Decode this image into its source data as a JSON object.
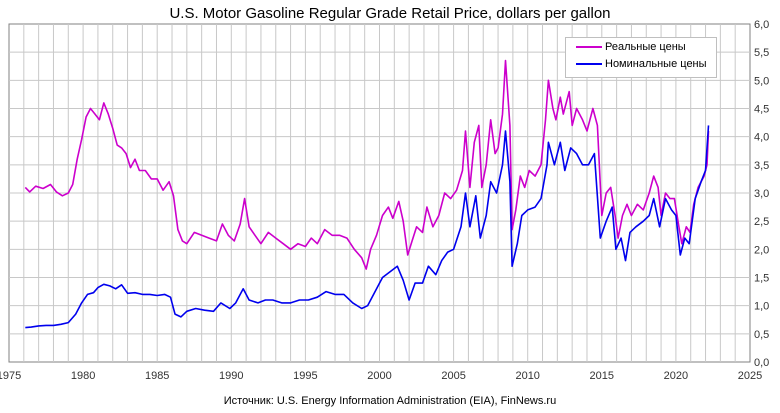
{
  "chart_data": {
    "type": "line",
    "title": "U.S. Motor Gasoline Regular Grade Retail Price, dollars per gallon",
    "source": "Источник: U.S. Energy Information Administration (EIA), FinNews.ru",
    "xlim": [
      1975,
      2025
    ],
    "ylim": [
      0,
      6
    ],
    "x_ticks": [
      "1975",
      "1980",
      "1985",
      "1990",
      "1995",
      "2000",
      "2005",
      "2010",
      "2015",
      "2020",
      "2025"
    ],
    "y_ticks": [
      "0,0",
      "0,5",
      "1,0",
      "1,5",
      "2,0",
      "2,5",
      "3,0",
      "3,5",
      "4,0",
      "4,5",
      "5,0",
      "5,5",
      "6,0"
    ],
    "grid": true,
    "legend_position": "top-right",
    "series": [
      {
        "name": "Реальные цены",
        "color": "#cc00cc",
        "points": [
          [
            1976.1,
            3.1
          ],
          [
            1976.4,
            3.02
          ],
          [
            1976.8,
            3.12
          ],
          [
            1977.3,
            3.08
          ],
          [
            1977.8,
            3.15
          ],
          [
            1978.2,
            3.02
          ],
          [
            1978.6,
            2.95
          ],
          [
            1979.0,
            3.0
          ],
          [
            1979.3,
            3.15
          ],
          [
            1979.6,
            3.6
          ],
          [
            1979.9,
            3.95
          ],
          [
            1980.2,
            4.35
          ],
          [
            1980.5,
            4.5
          ],
          [
            1980.8,
            4.4
          ],
          [
            1981.1,
            4.3
          ],
          [
            1981.4,
            4.6
          ],
          [
            1981.7,
            4.4
          ],
          [
            1982.0,
            4.15
          ],
          [
            1982.3,
            3.85
          ],
          [
            1982.6,
            3.8
          ],
          [
            1982.9,
            3.7
          ],
          [
            1983.2,
            3.45
          ],
          [
            1983.5,
            3.6
          ],
          [
            1983.8,
            3.4
          ],
          [
            1984.2,
            3.4
          ],
          [
            1984.6,
            3.25
          ],
          [
            1985.0,
            3.25
          ],
          [
            1985.4,
            3.05
          ],
          [
            1985.8,
            3.2
          ],
          [
            1986.1,
            2.95
          ],
          [
            1986.4,
            2.35
          ],
          [
            1986.7,
            2.15
          ],
          [
            1987.0,
            2.1
          ],
          [
            1987.5,
            2.3
          ],
          [
            1988.0,
            2.25
          ],
          [
            1988.5,
            2.2
          ],
          [
            1989.0,
            2.15
          ],
          [
            1989.4,
            2.45
          ],
          [
            1989.8,
            2.25
          ],
          [
            1990.2,
            2.15
          ],
          [
            1990.6,
            2.45
          ],
          [
            1990.9,
            2.9
          ],
          [
            1991.2,
            2.4
          ],
          [
            1991.6,
            2.25
          ],
          [
            1992.0,
            2.1
          ],
          [
            1992.5,
            2.3
          ],
          [
            1993.0,
            2.2
          ],
          [
            1993.5,
            2.1
          ],
          [
            1994.0,
            2.0
          ],
          [
            1994.5,
            2.1
          ],
          [
            1995.0,
            2.05
          ],
          [
            1995.4,
            2.2
          ],
          [
            1995.8,
            2.1
          ],
          [
            1996.3,
            2.35
          ],
          [
            1996.8,
            2.25
          ],
          [
            1997.3,
            2.25
          ],
          [
            1997.8,
            2.2
          ],
          [
            1998.3,
            2.0
          ],
          [
            1998.8,
            1.85
          ],
          [
            1999.1,
            1.65
          ],
          [
            1999.4,
            2.0
          ],
          [
            1999.8,
            2.25
          ],
          [
            2000.2,
            2.6
          ],
          [
            2000.6,
            2.75
          ],
          [
            2000.9,
            2.55
          ],
          [
            2001.3,
            2.85
          ],
          [
            2001.6,
            2.5
          ],
          [
            2001.9,
            1.9
          ],
          [
            2002.2,
            2.15
          ],
          [
            2002.5,
            2.4
          ],
          [
            2002.9,
            2.3
          ],
          [
            2003.2,
            2.75
          ],
          [
            2003.6,
            2.4
          ],
          [
            2004.0,
            2.6
          ],
          [
            2004.4,
            3.0
          ],
          [
            2004.8,
            2.9
          ],
          [
            2005.2,
            3.05
          ],
          [
            2005.6,
            3.4
          ],
          [
            2005.8,
            4.1
          ],
          [
            2006.1,
            3.1
          ],
          [
            2006.4,
            3.9
          ],
          [
            2006.7,
            4.2
          ],
          [
            2006.9,
            3.1
          ],
          [
            2007.2,
            3.5
          ],
          [
            2007.5,
            4.3
          ],
          [
            2007.8,
            3.7
          ],
          [
            2008.0,
            3.8
          ],
          [
            2008.3,
            4.4
          ],
          [
            2008.5,
            5.35
          ],
          [
            2008.8,
            4.2
          ],
          [
            2008.95,
            2.35
          ],
          [
            2009.2,
            2.7
          ],
          [
            2009.5,
            3.3
          ],
          [
            2009.8,
            3.1
          ],
          [
            2010.1,
            3.4
          ],
          [
            2010.5,
            3.3
          ],
          [
            2010.9,
            3.5
          ],
          [
            2011.2,
            4.3
          ],
          [
            2011.4,
            5.0
          ],
          [
            2011.7,
            4.5
          ],
          [
            2011.9,
            4.3
          ],
          [
            2012.2,
            4.7
          ],
          [
            2012.4,
            4.4
          ],
          [
            2012.8,
            4.8
          ],
          [
            2013.0,
            4.2
          ],
          [
            2013.3,
            4.5
          ],
          [
            2013.7,
            4.3
          ],
          [
            2014.0,
            4.1
          ],
          [
            2014.4,
            4.5
          ],
          [
            2014.7,
            4.2
          ],
          [
            2015.0,
            2.6
          ],
          [
            2015.3,
            3.0
          ],
          [
            2015.6,
            3.1
          ],
          [
            2015.9,
            2.6
          ],
          [
            2016.1,
            2.2
          ],
          [
            2016.4,
            2.6
          ],
          [
            2016.7,
            2.8
          ],
          [
            2017.0,
            2.6
          ],
          [
            2017.4,
            2.8
          ],
          [
            2017.8,
            2.7
          ],
          [
            2018.2,
            3.0
          ],
          [
            2018.5,
            3.3
          ],
          [
            2018.8,
            3.1
          ],
          [
            2019.0,
            2.6
          ],
          [
            2019.3,
            3.0
          ],
          [
            2019.6,
            2.9
          ],
          [
            2019.9,
            2.9
          ],
          [
            2020.2,
            2.4
          ],
          [
            2020.4,
            2.1
          ],
          [
            2020.7,
            2.4
          ],
          [
            2020.95,
            2.3
          ],
          [
            2021.2,
            2.8
          ],
          [
            2021.5,
            3.1
          ],
          [
            2021.9,
            3.3
          ],
          [
            2022.1,
            3.5
          ],
          [
            2022.2,
            4.1
          ]
        ]
      },
      {
        "name": "Номинальные цены",
        "color": "#0000ee",
        "points": [
          [
            1976.1,
            0.61
          ],
          [
            1976.5,
            0.62
          ],
          [
            1977.0,
            0.64
          ],
          [
            1977.5,
            0.65
          ],
          [
            1978.0,
            0.65
          ],
          [
            1978.5,
            0.67
          ],
          [
            1979.0,
            0.7
          ],
          [
            1979.5,
            0.85
          ],
          [
            1979.9,
            1.05
          ],
          [
            1980.3,
            1.2
          ],
          [
            1980.7,
            1.23
          ],
          [
            1981.0,
            1.32
          ],
          [
            1981.4,
            1.38
          ],
          [
            1981.8,
            1.35
          ],
          [
            1982.2,
            1.3
          ],
          [
            1982.6,
            1.37
          ],
          [
            1983.0,
            1.22
          ],
          [
            1983.5,
            1.23
          ],
          [
            1984.0,
            1.2
          ],
          [
            1984.5,
            1.2
          ],
          [
            1985.0,
            1.18
          ],
          [
            1985.5,
            1.2
          ],
          [
            1985.9,
            1.15
          ],
          [
            1986.2,
            0.85
          ],
          [
            1986.6,
            0.8
          ],
          [
            1987.0,
            0.9
          ],
          [
            1987.6,
            0.95
          ],
          [
            1988.2,
            0.92
          ],
          [
            1988.8,
            0.9
          ],
          [
            1989.3,
            1.05
          ],
          [
            1989.9,
            0.95
          ],
          [
            1990.3,
            1.05
          ],
          [
            1990.8,
            1.3
          ],
          [
            1991.2,
            1.1
          ],
          [
            1991.8,
            1.05
          ],
          [
            1992.3,
            1.1
          ],
          [
            1992.8,
            1.1
          ],
          [
            1993.4,
            1.05
          ],
          [
            1994.0,
            1.05
          ],
          [
            1994.6,
            1.1
          ],
          [
            1995.2,
            1.1
          ],
          [
            1995.8,
            1.15
          ],
          [
            1996.4,
            1.25
          ],
          [
            1997.0,
            1.2
          ],
          [
            1997.6,
            1.2
          ],
          [
            1998.2,
            1.05
          ],
          [
            1998.8,
            0.95
          ],
          [
            1999.2,
            1.0
          ],
          [
            1999.6,
            1.2
          ],
          [
            2000.2,
            1.5
          ],
          [
            2000.7,
            1.6
          ],
          [
            2001.2,
            1.7
          ],
          [
            2001.6,
            1.45
          ],
          [
            2002.0,
            1.1
          ],
          [
            2002.4,
            1.4
          ],
          [
            2002.9,
            1.4
          ],
          [
            2003.3,
            1.7
          ],
          [
            2003.8,
            1.55
          ],
          [
            2004.2,
            1.8
          ],
          [
            2004.6,
            1.95
          ],
          [
            2005.0,
            2.0
          ],
          [
            2005.5,
            2.4
          ],
          [
            2005.8,
            3.0
          ],
          [
            2006.1,
            2.4
          ],
          [
            2006.5,
            2.95
          ],
          [
            2006.8,
            2.2
          ],
          [
            2007.2,
            2.6
          ],
          [
            2007.5,
            3.2
          ],
          [
            2007.9,
            3.0
          ],
          [
            2008.3,
            3.5
          ],
          [
            2008.5,
            4.1
          ],
          [
            2008.8,
            3.2
          ],
          [
            2008.95,
            1.7
          ],
          [
            2009.3,
            2.1
          ],
          [
            2009.6,
            2.6
          ],
          [
            2010.0,
            2.7
          ],
          [
            2010.5,
            2.75
          ],
          [
            2010.9,
            2.9
          ],
          [
            2011.3,
            3.5
          ],
          [
            2011.4,
            3.9
          ],
          [
            2011.8,
            3.5
          ],
          [
            2012.2,
            3.9
          ],
          [
            2012.5,
            3.4
          ],
          [
            2012.9,
            3.8
          ],
          [
            2013.3,
            3.7
          ],
          [
            2013.7,
            3.5
          ],
          [
            2014.1,
            3.5
          ],
          [
            2014.5,
            3.7
          ],
          [
            2014.9,
            2.2
          ],
          [
            2015.3,
            2.5
          ],
          [
            2015.7,
            2.75
          ],
          [
            2015.95,
            2.0
          ],
          [
            2016.3,
            2.2
          ],
          [
            2016.6,
            1.8
          ],
          [
            2016.9,
            2.3
          ],
          [
            2017.3,
            2.4
          ],
          [
            2017.8,
            2.5
          ],
          [
            2018.2,
            2.6
          ],
          [
            2018.5,
            2.9
          ],
          [
            2018.9,
            2.4
          ],
          [
            2019.3,
            2.9
          ],
          [
            2019.7,
            2.7
          ],
          [
            2020.0,
            2.6
          ],
          [
            2020.3,
            1.9
          ],
          [
            2020.6,
            2.2
          ],
          [
            2020.9,
            2.1
          ],
          [
            2021.3,
            2.9
          ],
          [
            2021.7,
            3.2
          ],
          [
            2022.0,
            3.4
          ],
          [
            2022.2,
            4.2
          ]
        ]
      }
    ]
  }
}
